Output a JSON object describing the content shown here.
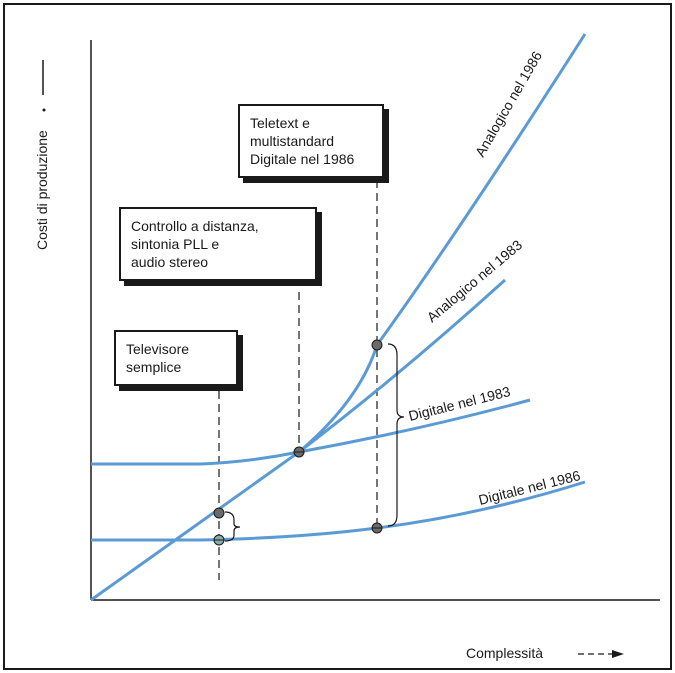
{
  "axes": {
    "y_label": "Costi di produzione",
    "x_label": "Complessità"
  },
  "boxes": [
    {
      "text": "Teletext e\nmultistandard\nDigitale nel 1986"
    },
    {
      "text": "Controllo a distanza,\nsintonia PLL e\naudio stereo"
    },
    {
      "text": "Televisore\nsemplice"
    }
  ],
  "curves": {
    "analog_1986": "Analogico nel 1986",
    "analog_1983": "Analogico nel 1983",
    "digital_1983": "Digitale nel 1983",
    "digital_1986": "Digitale nel 1986"
  },
  "colors": {
    "curve": "#5b9bd5",
    "ink": "#1a1a1a"
  }
}
